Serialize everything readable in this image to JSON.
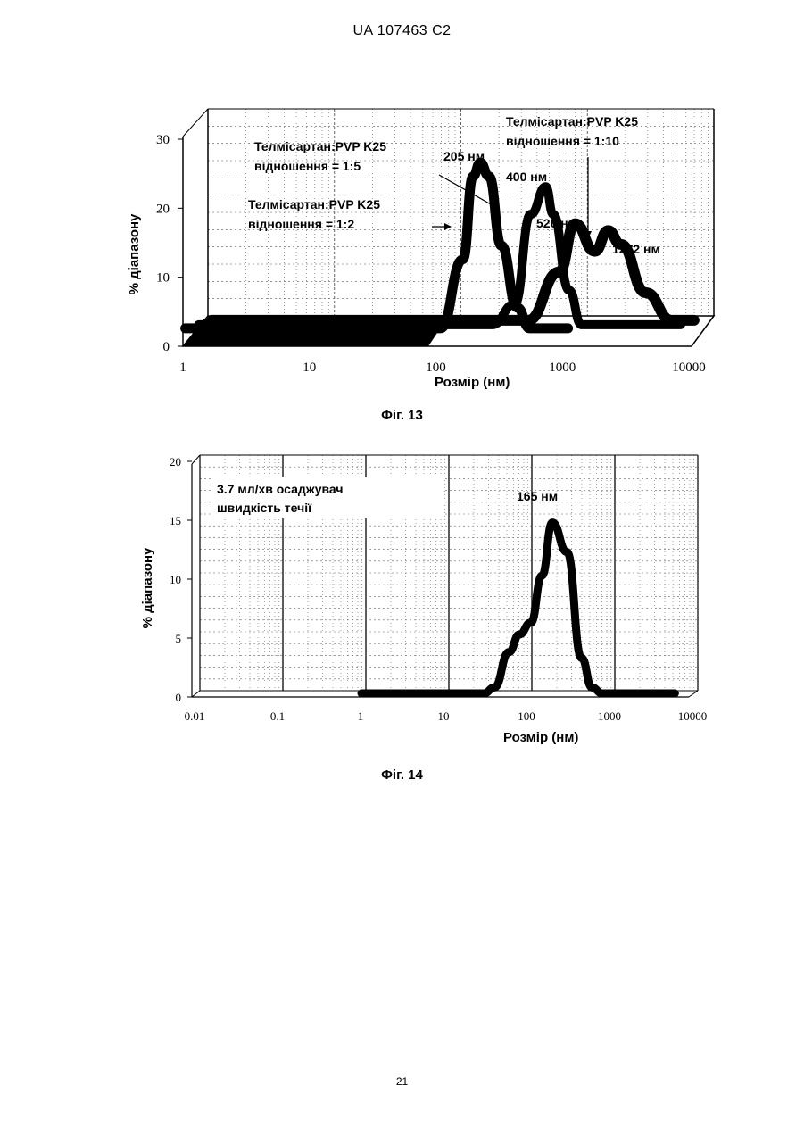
{
  "header": {
    "doc_id": "UA   107463   C2"
  },
  "page_number": "21",
  "chart_data": [
    {
      "type": "line",
      "caption": "Фіг. 13",
      "xlabel": "Розмір (нм)",
      "ylabel": "% діапазону",
      "x_scale": "log",
      "xlim": [
        1,
        10000
      ],
      "ylim": [
        0,
        30
      ],
      "x_ticks": [
        "1",
        "10",
        "100",
        "1000",
        "10000"
      ],
      "y_ticks": [
        "0",
        "10",
        "20",
        "30"
      ],
      "grid": true,
      "style": "3d",
      "series": [
        {
          "x": [
            1,
            100,
            150,
            180,
            205,
            240,
            300,
            400,
            500,
            700,
            1000
          ],
          "y": [
            0,
            0,
            10,
            22,
            24,
            22,
            12,
            3,
            0,
            0,
            0
          ]
        },
        {
          "x": [
            1,
            100,
            200,
            300,
            400,
            526,
            600,
            800,
            1000,
            2000,
            6000
          ],
          "y": [
            0,
            0,
            0,
            3,
            16,
            20,
            16,
            5,
            0,
            0,
            0
          ]
        },
        {
          "x": [
            1,
            100,
            300,
            526,
            700,
            1000,
            1272,
            1600,
            2500,
            4000,
            6000
          ],
          "y": [
            0,
            0,
            0,
            7,
            14,
            10,
            13,
            11,
            4,
            0,
            0
          ]
        }
      ],
      "annotations": [
        {
          "text_line1": "Телмісартан:PVP K25",
          "text_line2": "відношення = 1:5"
        },
        {
          "text_line1": "Телмісартан:PVP K25",
          "text_line2": "відношення = 1:2"
        },
        {
          "text_line1": "Телмісартан:PVP K25",
          "text_line2": "відношення = 1:10"
        }
      ],
      "peak_labels": [
        "205 нм",
        "400 нм",
        "526 нм",
        "1272 нм"
      ]
    },
    {
      "type": "line",
      "caption": "Фіг. 14",
      "xlabel": "Розмір (нм)",
      "ylabel": "% діапазону",
      "x_scale": "log",
      "xlim": [
        0.01,
        10000
      ],
      "ylim": [
        0,
        20
      ],
      "x_ticks": [
        "0.01",
        "0.1",
        "1",
        "10",
        "100",
        "1000",
        "10000"
      ],
      "y_ticks": [
        "0",
        "5",
        "10",
        "15",
        "20"
      ],
      "grid": true,
      "series": [
        {
          "x": [
            1,
            30,
            40,
            60,
            80,
            110,
            150,
            200,
            300,
            450,
            600,
            800,
            6000
          ],
          "y": [
            0,
            0,
            0.5,
            3.5,
            5,
            6,
            10,
            14.5,
            12,
            3,
            0.5,
            0,
            0
          ]
        }
      ],
      "annotations": [
        {
          "text_line1": "3.7 мл/хв осаджувач",
          "text_line2": "швидкість течії"
        }
      ],
      "peak_labels": [
        "165 нм"
      ]
    }
  ]
}
